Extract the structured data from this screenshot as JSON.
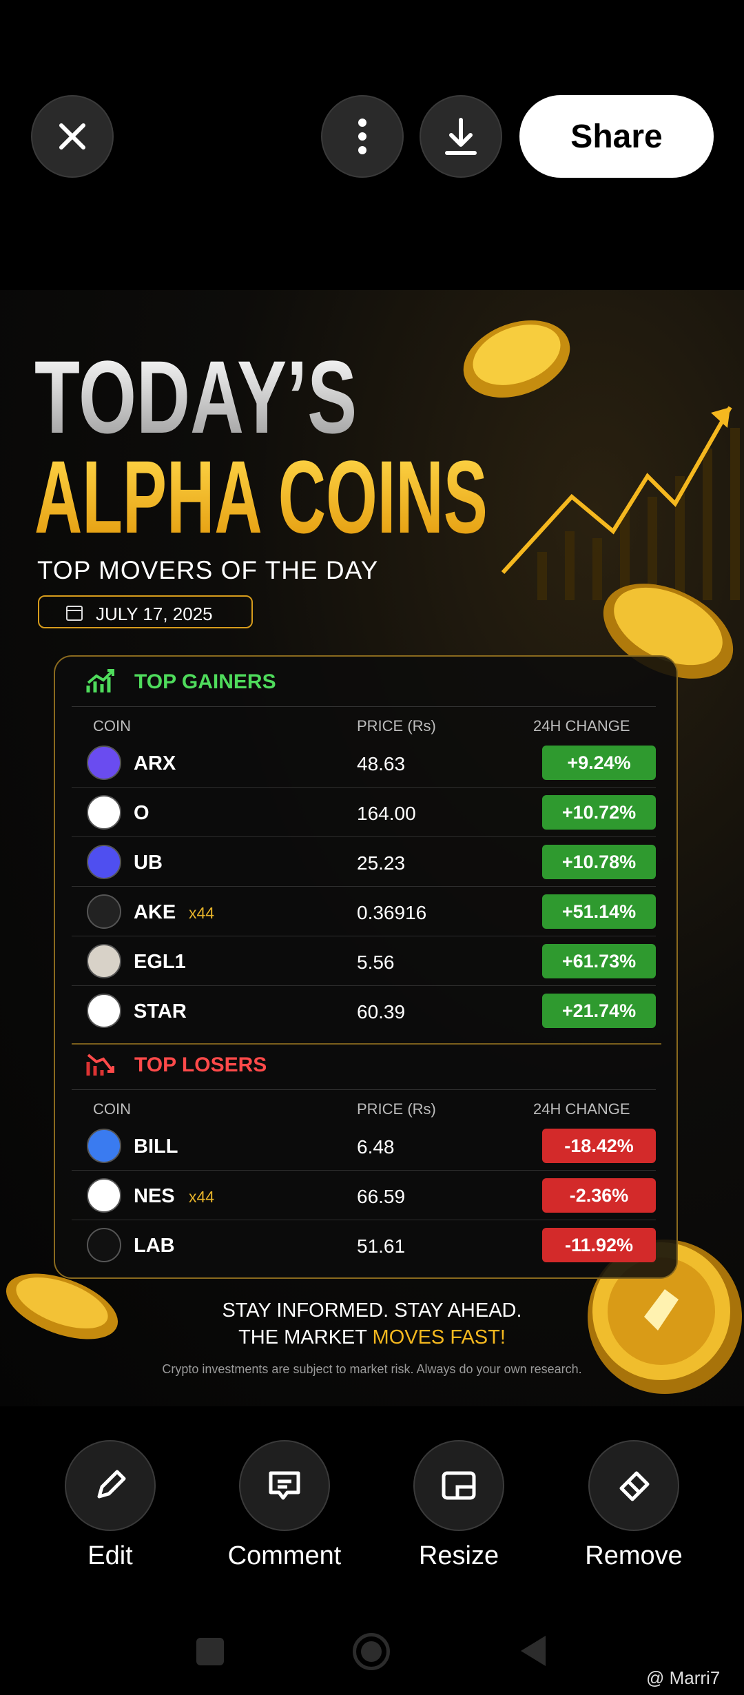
{
  "top_bar": {
    "share": "Share"
  },
  "poster": {
    "title_line1": "TODAY’S",
    "title_line2": "ALPHA COINS",
    "subtitle": "TOP MOVERS OF THE DAY",
    "date": "JULY 17, 2025",
    "gainers": {
      "heading": "TOP GAINERS",
      "columns": [
        "COIN",
        "PRICE (Rs)",
        "24H CHANGE"
      ],
      "rows": [
        {
          "coin": "ARX",
          "price": "48.63",
          "change": "+9.24%"
        },
        {
          "coin": "O",
          "price": "164.00",
          "change": "+10.72%"
        },
        {
          "coin": "UB",
          "price": "25.23",
          "change": "+10.78%"
        },
        {
          "coin": "AKE",
          "tag": "x44",
          "price": "0.36916",
          "change": "+51.14%"
        },
        {
          "coin": "EGL1",
          "price": "5.56",
          "change": "+61.73%"
        },
        {
          "coin": "STAR",
          "price": "60.39",
          "change": "+21.74%"
        }
      ]
    },
    "losers": {
      "heading": "TOP LOSERS",
      "columns": [
        "COIN",
        "PRICE (Rs)",
        "24H CHANGE"
      ],
      "rows": [
        {
          "coin": "BILL",
          "price": "6.48",
          "change": "-18.42%"
        },
        {
          "coin": "NES",
          "tag": "x44",
          "price": "66.59",
          "change": "-2.36%"
        },
        {
          "coin": "LAB",
          "price": "51.61",
          "change": "-11.92%"
        }
      ]
    },
    "footer": {
      "line1": "STAY INFORMED. STAY AHEAD.",
      "line2": "THE MARKET",
      "line2_highlight": "MOVES FAST!",
      "disclaimer": "Crypto investments are subject to market risk. Always do your own research."
    }
  },
  "actions": [
    "Edit",
    "Comment",
    "Resize",
    "Remove"
  ],
  "watermark": "@ Marri7"
}
